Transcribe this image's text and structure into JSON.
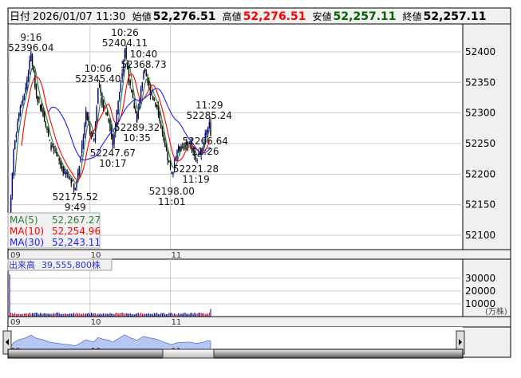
{
  "header": {
    "date_label": "日付",
    "date": "2026/01/07 11:30",
    "open_label": "始値",
    "open": "52,276.51",
    "high_label": "高値",
    "high": "52,276.51",
    "low_label": "安値",
    "low": "52,257.11",
    "close_label": "終値",
    "close": "52,257.11"
  },
  "colors": {
    "up": "#ff0000",
    "down": "#00008b",
    "candle_up": "#000080",
    "candle_down": "#000000",
    "ma5": "#2e7d32",
    "ma10": "#ff0000",
    "ma30": "#1e1ef0",
    "high_value": "#ff0000",
    "low_value": "#006400"
  },
  "legend": {
    "ma5_label": "MA(5)",
    "ma5_value": "52,267.27",
    "ma10_label": "MA(10)",
    "ma10_value": "52,254.96",
    "ma30_label": "MA(30)",
    "ma30_value": "52,243.11"
  },
  "volume_panel": {
    "label": "出来高",
    "total": "39,555,800株",
    "unit": "(万株)",
    "ticks": [
      "30000",
      "20000",
      "10000"
    ]
  },
  "chart_data": {
    "type": "candlestick",
    "y_ticks": [
      "52400",
      "52350",
      "52300",
      "52250",
      "52200",
      "52150",
      "52100"
    ],
    "ylim": [
      52070,
      52450
    ],
    "x_ticks": [
      "09",
      "10",
      "11"
    ],
    "x_range": [
      "9:00",
      "11:30"
    ],
    "grid": true,
    "price_path": [
      [
        "9:00",
        52125
      ],
      [
        "9:03",
        52240
      ],
      [
        "9:07",
        52300
      ],
      [
        "9:12",
        52340
      ],
      [
        "9:16",
        52396.04
      ],
      [
        "9:20",
        52330
      ],
      [
        "9:25",
        52300
      ],
      [
        "9:30",
        52250
      ],
      [
        "9:35",
        52230
      ],
      [
        "9:40",
        52205
      ],
      [
        "9:45",
        52195
      ],
      [
        "9:49",
        52175.52
      ],
      [
        "9:53",
        52230
      ],
      [
        "9:57",
        52300
      ],
      [
        "10:00",
        52270
      ],
      [
        "10:03",
        52255
      ],
      [
        "10:06",
        52345.4
      ],
      [
        "10:10",
        52310
      ],
      [
        "10:14",
        52290
      ],
      [
        "10:17",
        52247.67
      ],
      [
        "10:21",
        52320
      ],
      [
        "10:24",
        52370
      ],
      [
        "10:26",
        52404.11
      ],
      [
        "10:30",
        52340
      ],
      [
        "10:35",
        52289.32
      ],
      [
        "10:40",
        52368.73
      ],
      [
        "10:45",
        52335
      ],
      [
        "10:50",
        52310
      ],
      [
        "10:55",
        52250
      ],
      [
        "10:58",
        52225
      ],
      [
        "11:01",
        52198.0
      ],
      [
        "11:05",
        52240
      ],
      [
        "11:10",
        52245
      ],
      [
        "11:15",
        52250
      ],
      [
        "11:19",
        52221.28
      ],
      [
        "11:24",
        52245
      ],
      [
        "11:26",
        52266.64
      ],
      [
        "11:29",
        52285.24
      ],
      [
        "11:30",
        52257.11
      ]
    ],
    "annotations": [
      {
        "time": "9:16",
        "value": "52396.04",
        "pos": "above"
      },
      {
        "time": "9:49",
        "value": "52175.52",
        "pos": "below"
      },
      {
        "time": "10:06",
        "value": "52345.40",
        "pos": "above"
      },
      {
        "time": "10:17",
        "value": "52247.67",
        "pos": "below"
      },
      {
        "time": "10:26",
        "value": "52404.11",
        "pos": "above"
      },
      {
        "time": "10:35",
        "value": "52289.32",
        "pos": "below"
      },
      {
        "time": "10:40",
        "value": "52368.73",
        "pos": "above"
      },
      {
        "time": "11:01",
        "value": "52198.00",
        "pos": "below"
      },
      {
        "time": "11:19",
        "value": "52221.28",
        "pos": "below"
      },
      {
        "time": "11:26",
        "value": "52266.64",
        "pos": "above"
      },
      {
        "time": "11:29",
        "value": "52285.24",
        "pos": "above"
      }
    ],
    "volume": {
      "ylim": [
        0,
        40000
      ],
      "first_bar": 33000,
      "typical": 2500,
      "last_bar": 6000
    }
  }
}
